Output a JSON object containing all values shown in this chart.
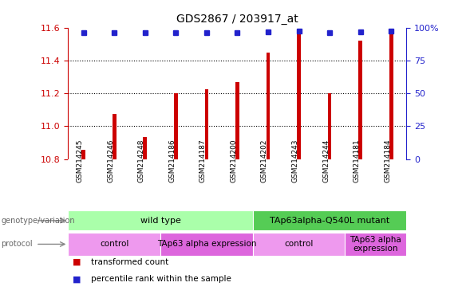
{
  "title": "GDS2867 / 203917_at",
  "samples": [
    "GSM214245",
    "GSM214246",
    "GSM214248",
    "GSM214186",
    "GSM214187",
    "GSM214200",
    "GSM214202",
    "GSM214243",
    "GSM214244",
    "GSM214181",
    "GSM214184"
  ],
  "transformed_counts": [
    10.855,
    11.075,
    10.935,
    11.2,
    11.225,
    11.27,
    11.45,
    11.565,
    11.2,
    11.52,
    11.575
  ],
  "percentile_y_left": [
    11.567,
    11.567,
    11.567,
    11.567,
    11.567,
    11.567,
    11.575,
    11.578,
    11.57,
    11.575,
    11.58
  ],
  "ylim_left": [
    10.8,
    11.6
  ],
  "yticks_left": [
    10.8,
    11.0,
    11.2,
    11.4,
    11.6
  ],
  "yticks_right": [
    0,
    25,
    50,
    75,
    100
  ],
  "bar_color": "#cc0000",
  "dot_color": "#2222cc",
  "genotype_groups": [
    {
      "label": "wild type",
      "start": 0,
      "end": 6,
      "color": "#aaffaa"
    },
    {
      "label": "TAp63alpha-Q540L mutant",
      "start": 6,
      "end": 11,
      "color": "#55cc55"
    }
  ],
  "protocol_groups": [
    {
      "label": "control",
      "start": 0,
      "end": 3,
      "color": "#ee99ee"
    },
    {
      "label": "TAp63 alpha expression",
      "start": 3,
      "end": 6,
      "color": "#dd66dd"
    },
    {
      "label": "control",
      "start": 6,
      "end": 9,
      "color": "#ee99ee"
    },
    {
      "label": "TAp63 alpha\nexpression",
      "start": 9,
      "end": 11,
      "color": "#dd66dd"
    }
  ],
  "legend_items": [
    {
      "color": "#cc0000",
      "label": "transformed count"
    },
    {
      "color": "#2222cc",
      "label": "percentile rank within the sample"
    }
  ],
  "background_color": "#ffffff",
  "label_color_left": "#cc0000",
  "label_color_right": "#2222cc"
}
